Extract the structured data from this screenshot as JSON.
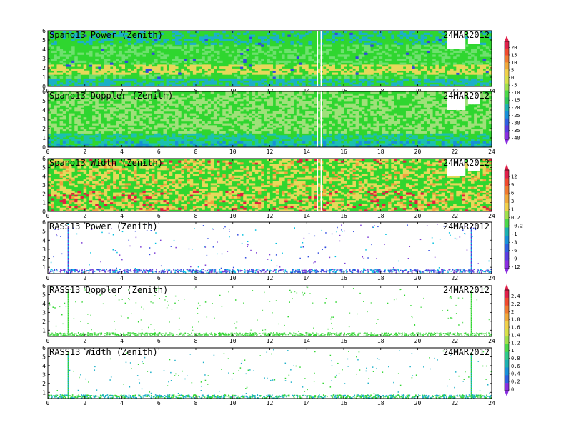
{
  "chart_data": [
    {
      "type": "heatmap",
      "title": "Spano13 Power (Zenith)",
      "date": "24MAR2012",
      "x_ticks": [
        "0",
        "2",
        "4",
        "6",
        "8",
        "10",
        "12",
        "14",
        "16",
        "18",
        "20",
        "22",
        "24"
      ],
      "y_ticks": [
        "0",
        "1",
        "2",
        "3",
        "4",
        "5",
        "6"
      ],
      "xlim": [
        0,
        24
      ],
      "ylim": [
        0,
        6
      ],
      "colorbar_ticks": [
        "20",
        "15",
        "10",
        "5",
        "0",
        "-5",
        "-10",
        "-15",
        "-20",
        "-25",
        "-30",
        "-35",
        "-40"
      ],
      "colorbar_range": [
        -45,
        25
      ],
      "dominant_colors": [
        "#2fd62f",
        "#6ee06e",
        "#e6d85a",
        "#1cb0c8",
        "#3048e0"
      ]
    },
    {
      "type": "heatmap",
      "title": "Spano13 Doppler (Zenith)",
      "date": "24MAR2012",
      "x_ticks": [
        "0",
        "2",
        "4",
        "6",
        "8",
        "10",
        "12",
        "14",
        "16",
        "18",
        "20",
        "22",
        "24"
      ],
      "y_ticks": [
        "0",
        "1",
        "2",
        "3",
        "4",
        "5",
        "6"
      ],
      "xlim": [
        0,
        24
      ],
      "ylim": [
        0,
        6
      ],
      "dominant_colors": [
        "#2fd62f",
        "#9fe07a",
        "#1cc0b0",
        "#1890d8"
      ]
    },
    {
      "type": "heatmap",
      "title": "Spano13 Width (Zenith)",
      "date": "24MAR2012",
      "x_ticks": [
        "0",
        "2",
        "4",
        "6",
        "8",
        "10",
        "12",
        "14",
        "16",
        "18",
        "20",
        "22",
        "24"
      ],
      "y_ticks": [
        "0",
        "1",
        "2",
        "3",
        "4",
        "5",
        "6"
      ],
      "xlim": [
        0,
        24
      ],
      "ylim": [
        0,
        6
      ],
      "colorbar_ticks": [
        "12",
        "9",
        "6",
        "3",
        "1",
        "0.2",
        "-0.2",
        "-1",
        "-3",
        "-6",
        "-9",
        "-12"
      ],
      "colorbar_range": [
        -12,
        12
      ],
      "dominant_colors": [
        "#2fd62f",
        "#e6d85a",
        "#f0a040",
        "#e02040"
      ]
    },
    {
      "type": "scatter",
      "title": "RASS13 Power (Zenith)",
      "date": "24MAR2012",
      "x_ticks": [
        "0",
        "2",
        "4",
        "6",
        "8",
        "10",
        "12",
        "14",
        "16",
        "18",
        "20",
        "22",
        "24"
      ],
      "y_ticks": [
        "1",
        "2",
        "3",
        "4",
        "5",
        "6"
      ],
      "xlim": [
        0,
        24
      ],
      "ylim": [
        0.3,
        6
      ],
      "main_band_height_km": 0.65,
      "vertical_columns_hours": [
        1.1,
        22.9
      ],
      "dominant_colors": [
        "#7a3cd6",
        "#2f4ae0",
        "#00c0e0"
      ]
    },
    {
      "type": "scatter",
      "title": "RASS13 Doppler (Zenith)",
      "date": "24MAR2012",
      "x_ticks": [
        "0",
        "2",
        "4",
        "6",
        "8",
        "10",
        "12",
        "14",
        "16",
        "18",
        "20",
        "22",
        "24"
      ],
      "y_ticks": [
        "1",
        "2",
        "3",
        "4",
        "5",
        "6"
      ],
      "xlim": [
        0,
        24
      ],
      "ylim": [
        0.3,
        6
      ],
      "main_band_height_km": 0.6,
      "vertical_columns_hours": [
        1.1,
        22.9
      ],
      "colorbar_ticks": [
        "2.4",
        "2.2",
        "2",
        "1.8",
        "1.6",
        "1.4",
        "1.2",
        "1",
        "0.8",
        "0.6",
        "0.4",
        "0.2",
        "0"
      ],
      "colorbar_range": [
        0,
        2.6
      ],
      "dominant_colors": [
        "#2fd62f",
        "#6ee06e"
      ]
    },
    {
      "type": "scatter",
      "title": "RASS13 Width (Zenith)",
      "date": "24MAR2012",
      "x_ticks": [
        "0",
        "2",
        "4",
        "6",
        "8",
        "10",
        "12",
        "14",
        "16",
        "18",
        "20",
        "22",
        "24"
      ],
      "y_ticks": [
        "1",
        "2",
        "3",
        "4",
        "5",
        "6"
      ],
      "xlim": [
        0,
        24
      ],
      "ylim": [
        0.3,
        6
      ],
      "main_band_height_km": 0.6,
      "vertical_columns_hours": [
        1.1,
        22.9
      ],
      "dominant_colors": [
        "#1cb0c8",
        "#2fd62f"
      ]
    }
  ]
}
